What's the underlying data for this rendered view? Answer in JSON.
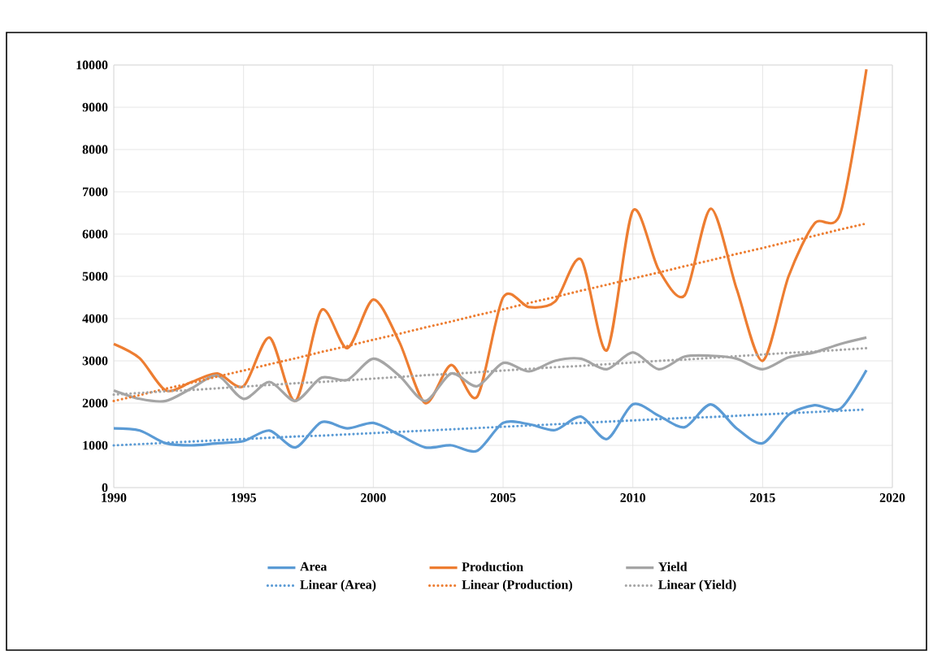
{
  "chart_data": {
    "type": "line",
    "x": [
      1990,
      1991,
      1992,
      1993,
      1994,
      1995,
      1996,
      1997,
      1998,
      1999,
      2000,
      2001,
      2002,
      2003,
      2004,
      2005,
      2006,
      2007,
      2008,
      2009,
      2010,
      2011,
      2012,
      2013,
      2014,
      2015,
      2016,
      2017,
      2018,
      2019
    ],
    "series": [
      {
        "name": "Area",
        "color": "#5b9bd5",
        "line_style": "solid",
        "values": [
          1400,
          1350,
          1050,
          1000,
          1050,
          1100,
          1350,
          950,
          1550,
          1400,
          1530,
          1250,
          950,
          1000,
          870,
          1530,
          1500,
          1360,
          1680,
          1150,
          1970,
          1700,
          1430,
          1970,
          1400,
          1050,
          1720,
          1950,
          1870,
          2780
        ]
      },
      {
        "name": "Production",
        "color": "#ed7d31",
        "line_style": "solid",
        "values": [
          3400,
          3060,
          2300,
          2500,
          2700,
          2400,
          3550,
          2050,
          4200,
          3300,
          4450,
          3450,
          2000,
          2900,
          2150,
          4500,
          4270,
          4400,
          5400,
          3250,
          6550,
          5150,
          4550,
          6600,
          4700,
          3000,
          5000,
          6250,
          6500,
          9900
        ]
      },
      {
        "name": "Yield",
        "color": "#a5a5a5",
        "line_style": "solid",
        "values": [
          2300,
          2100,
          2050,
          2350,
          2650,
          2100,
          2500,
          2050,
          2600,
          2550,
          3050,
          2650,
          2050,
          2700,
          2400,
          2950,
          2750,
          3000,
          3050,
          2800,
          3200,
          2800,
          3100,
          3120,
          3050,
          2800,
          3080,
          3200,
          3400,
          3550
        ]
      },
      {
        "name": "Linear (Area)",
        "color": "#5b9bd5",
        "line_style": "dotted",
        "values": [
          1000,
          1030,
          1060,
          1090,
          1120,
          1150,
          1180,
          1210,
          1230,
          1260,
          1290,
          1320,
          1350,
          1380,
          1410,
          1440,
          1470,
          1500,
          1530,
          1560,
          1590,
          1620,
          1650,
          1670,
          1700,
          1730,
          1760,
          1790,
          1820,
          1850
        ]
      },
      {
        "name": "Linear (Production)",
        "color": "#ed7d31",
        "line_style": "dotted",
        "values": [
          2050,
          2190,
          2340,
          2480,
          2630,
          2770,
          2920,
          3060,
          3210,
          3350,
          3500,
          3640,
          3790,
          3930,
          4080,
          4220,
          4370,
          4510,
          4660,
          4800,
          4950,
          5090,
          5240,
          5380,
          5530,
          5670,
          5820,
          5960,
          6110,
          6250
        ]
      },
      {
        "name": "Linear (Yield)",
        "color": "#a5a5a5",
        "line_style": "dotted",
        "values": [
          2200,
          2240,
          2280,
          2310,
          2350,
          2390,
          2430,
          2470,
          2500,
          2540,
          2580,
          2620,
          2660,
          2690,
          2730,
          2770,
          2810,
          2850,
          2880,
          2920,
          2960,
          3000,
          3030,
          3070,
          3110,
          3150,
          3190,
          3220,
          3260,
          3300
        ]
      }
    ],
    "xlim": [
      1990,
      2020
    ],
    "xticks": [
      1990,
      1995,
      2000,
      2005,
      2010,
      2015,
      2020
    ],
    "ylim": [
      0,
      10000
    ],
    "yticks": [
      0,
      1000,
      2000,
      3000,
      4000,
      5000,
      6000,
      7000,
      8000,
      9000,
      10000
    ],
    "grid": true,
    "legend": "bottom"
  }
}
